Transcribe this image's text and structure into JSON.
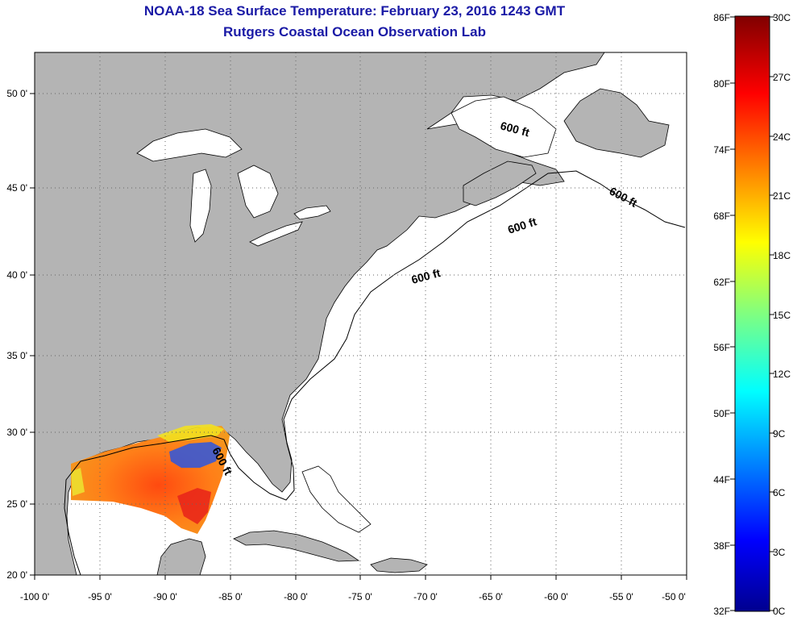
{
  "title": {
    "line1": "NOAA-18 Sea Surface Temperature:  February 23, 2016 1243 GMT",
    "line2": "Rutgers Coastal Ocean Observation Lab"
  },
  "map": {
    "lon_labels": [
      "-100 0'",
      "-95 0'",
      "-90 0'",
      "-85 0'",
      "-80 0'",
      "-75 0'",
      "-70 0'",
      "-65 0'",
      "-60 0'",
      "-55 0'",
      "-50 0'"
    ],
    "lat_labels": [
      "50 0'",
      "45 0'",
      "40 0'",
      "35 0'",
      "30 0'",
      "25 0'",
      "20 0'"
    ],
    "contour_labels": [
      "600 ft",
      "600 ft",
      "600 ft",
      "600 ft",
      "600 ft"
    ],
    "land_color": "#b4b4b4",
    "ocean_color": "#ffffff"
  },
  "colorbar": {
    "fahrenheit_labels": [
      "86F",
      "80F",
      "74F",
      "68F",
      "62F",
      "56F",
      "50F",
      "44F",
      "38F",
      "32F"
    ],
    "celsius_labels": [
      "30C",
      "27C",
      "24C",
      "21C",
      "18C",
      "15C",
      "12C",
      "9C",
      "6C",
      "3C",
      "0C"
    ]
  }
}
